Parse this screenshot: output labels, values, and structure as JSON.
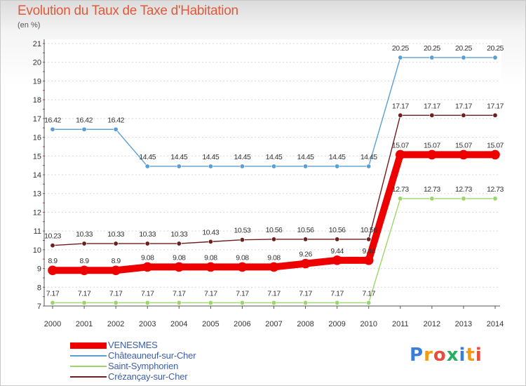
{
  "title": "Evolution du Taux de Taxe d'Habitation",
  "unit_label": "(en %)",
  "logo_letters": [
    "P",
    "r",
    "o",
    "x",
    "i",
    "t",
    "i"
  ],
  "colors": {
    "logo": [
      "#3a7fd5",
      "#f39c12",
      "#e74c3c",
      "#27ae60",
      "#3a7fd5",
      "#f39c12",
      "#e74c3c"
    ]
  },
  "chart_data": {
    "type": "line",
    "x": [
      "2000",
      "2001",
      "2002",
      "2003",
      "2004",
      "2005",
      "2006",
      "2007",
      "2008",
      "2009",
      "2010",
      "2011",
      "2012",
      "2013",
      "2014"
    ],
    "ylim": [
      7,
      21
    ],
    "yticks": [
      "7",
      "8",
      "9",
      "10",
      "11",
      "12",
      "13",
      "14",
      "15",
      "16",
      "17",
      "18",
      "19",
      "20",
      "21"
    ],
    "grid": "horizontal dashed",
    "legend_position": "bottom-left",
    "series": [
      {
        "name": "VENESMES",
        "color": "#ee0000",
        "emphasis": true,
        "values": [
          8.9,
          8.9,
          8.9,
          9.08,
          9.08,
          9.08,
          9.08,
          9.08,
          9.26,
          9.44,
          9.44,
          15.07,
          15.07,
          15.07,
          15.07
        ],
        "labels": [
          "8.9",
          "8.9",
          "8.9",
          "9.08",
          "9.08",
          "9.08",
          "9.08",
          "9.08",
          "9.26",
          "9.44",
          "9.44",
          "15.07",
          "15.07",
          "15.07",
          "15.07"
        ]
      },
      {
        "name": "Châteauneuf-sur-Cher",
        "color": "#5a9fd4",
        "values": [
          16.42,
          16.42,
          16.42,
          14.45,
          14.45,
          14.45,
          14.45,
          14.45,
          14.45,
          14.45,
          14.45,
          20.25,
          20.25,
          20.25,
          20.25
        ],
        "labels": [
          "16.42",
          "16.42",
          "16.42",
          "14.45",
          "14.45",
          "14.45",
          "14.45",
          "14.45",
          "14.45",
          "14.45",
          "14.45",
          "20.25",
          "20.25",
          "20.25",
          "20.25"
        ]
      },
      {
        "name": "Saint-Symphorien",
        "color": "#9bd66a",
        "values": [
          7.17,
          7.17,
          7.17,
          7.17,
          7.17,
          7.17,
          7.17,
          7.17,
          7.17,
          7.17,
          7.17,
          12.73,
          12.73,
          12.73,
          12.73
        ],
        "labels": [
          "7.17",
          "7.17",
          "7.17",
          "7.17",
          "7.17",
          "7.17",
          "7.17",
          "7.17",
          "7.17",
          "7.17",
          "7.17",
          "12.73",
          "12.73",
          "12.73",
          "12.73"
        ]
      },
      {
        "name": "Crézançay-sur-Cher",
        "color": "#6b1f1f",
        "values": [
          10.23,
          10.33,
          10.33,
          10.33,
          10.33,
          10.43,
          10.53,
          10.56,
          10.56,
          10.56,
          10.56,
          17.17,
          17.17,
          17.17,
          17.17
        ],
        "labels": [
          "10.23",
          "10.33",
          "10.33",
          "10.33",
          "10.33",
          "10.43",
          "10.53",
          "10.56",
          "10.56",
          "10.56",
          "10.56",
          "17.17",
          "17.17",
          "17.17",
          "17.17"
        ]
      }
    ]
  }
}
